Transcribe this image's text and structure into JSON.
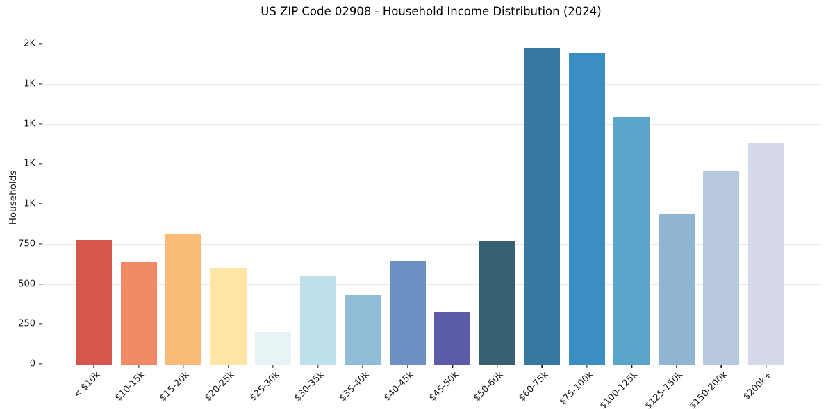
{
  "chart_data": {
    "type": "bar",
    "title": "US ZIP Code 02908 - Household Income Distribution (2024)",
    "xlabel": "",
    "ylabel": "Households",
    "categories": [
      "< $10k",
      "$10-15k",
      "$15-20k",
      "$20-25k",
      "$25-30k",
      "$30-35k",
      "$35-40k",
      "$40-45k",
      "$45-50k",
      "$50-60k",
      "$60-75k",
      "$75-100k",
      "$100-125k",
      "$125-150k",
      "$150-200k",
      "$200k+"
    ],
    "values": [
      780,
      640,
      815,
      600,
      205,
      555,
      435,
      650,
      330,
      775,
      1980,
      1950,
      1545,
      940,
      1210,
      1380
    ],
    "bar_colors": [
      "#d6554d",
      "#f28a68",
      "#f9bb77",
      "#fce5a5",
      "#e7f3f5",
      "#bfe0eb",
      "#90bcd8",
      "#6b91c3",
      "#5a5caa",
      "#366070",
      "#3878a0",
      "#3a8ec2",
      "#5ca5ca",
      "#90b5d3",
      "#b8c8df",
      "#d6d9e7"
    ],
    "ylim": [
      0,
      2079
    ],
    "yticks": [
      {
        "value": 0,
        "label": "0"
      },
      {
        "value": 250,
        "label": "250"
      },
      {
        "value": 500,
        "label": "500"
      },
      {
        "value": 750,
        "label": "750"
      },
      {
        "value": 1000,
        "label": "1K"
      },
      {
        "value": 1250,
        "label": "1K"
      },
      {
        "value": 1500,
        "label": "1K"
      },
      {
        "value": 1750,
        "label": "1K"
      },
      {
        "value": 2000,
        "label": "2K"
      }
    ],
    "grid": "horizontal",
    "legend": "none",
    "x_tick_rotation_deg": 45,
    "colors": {
      "background": "#ffffff",
      "axis": "#1a1a1a",
      "gridline": "#e9e9e9",
      "text": "#1a1a1a"
    }
  }
}
